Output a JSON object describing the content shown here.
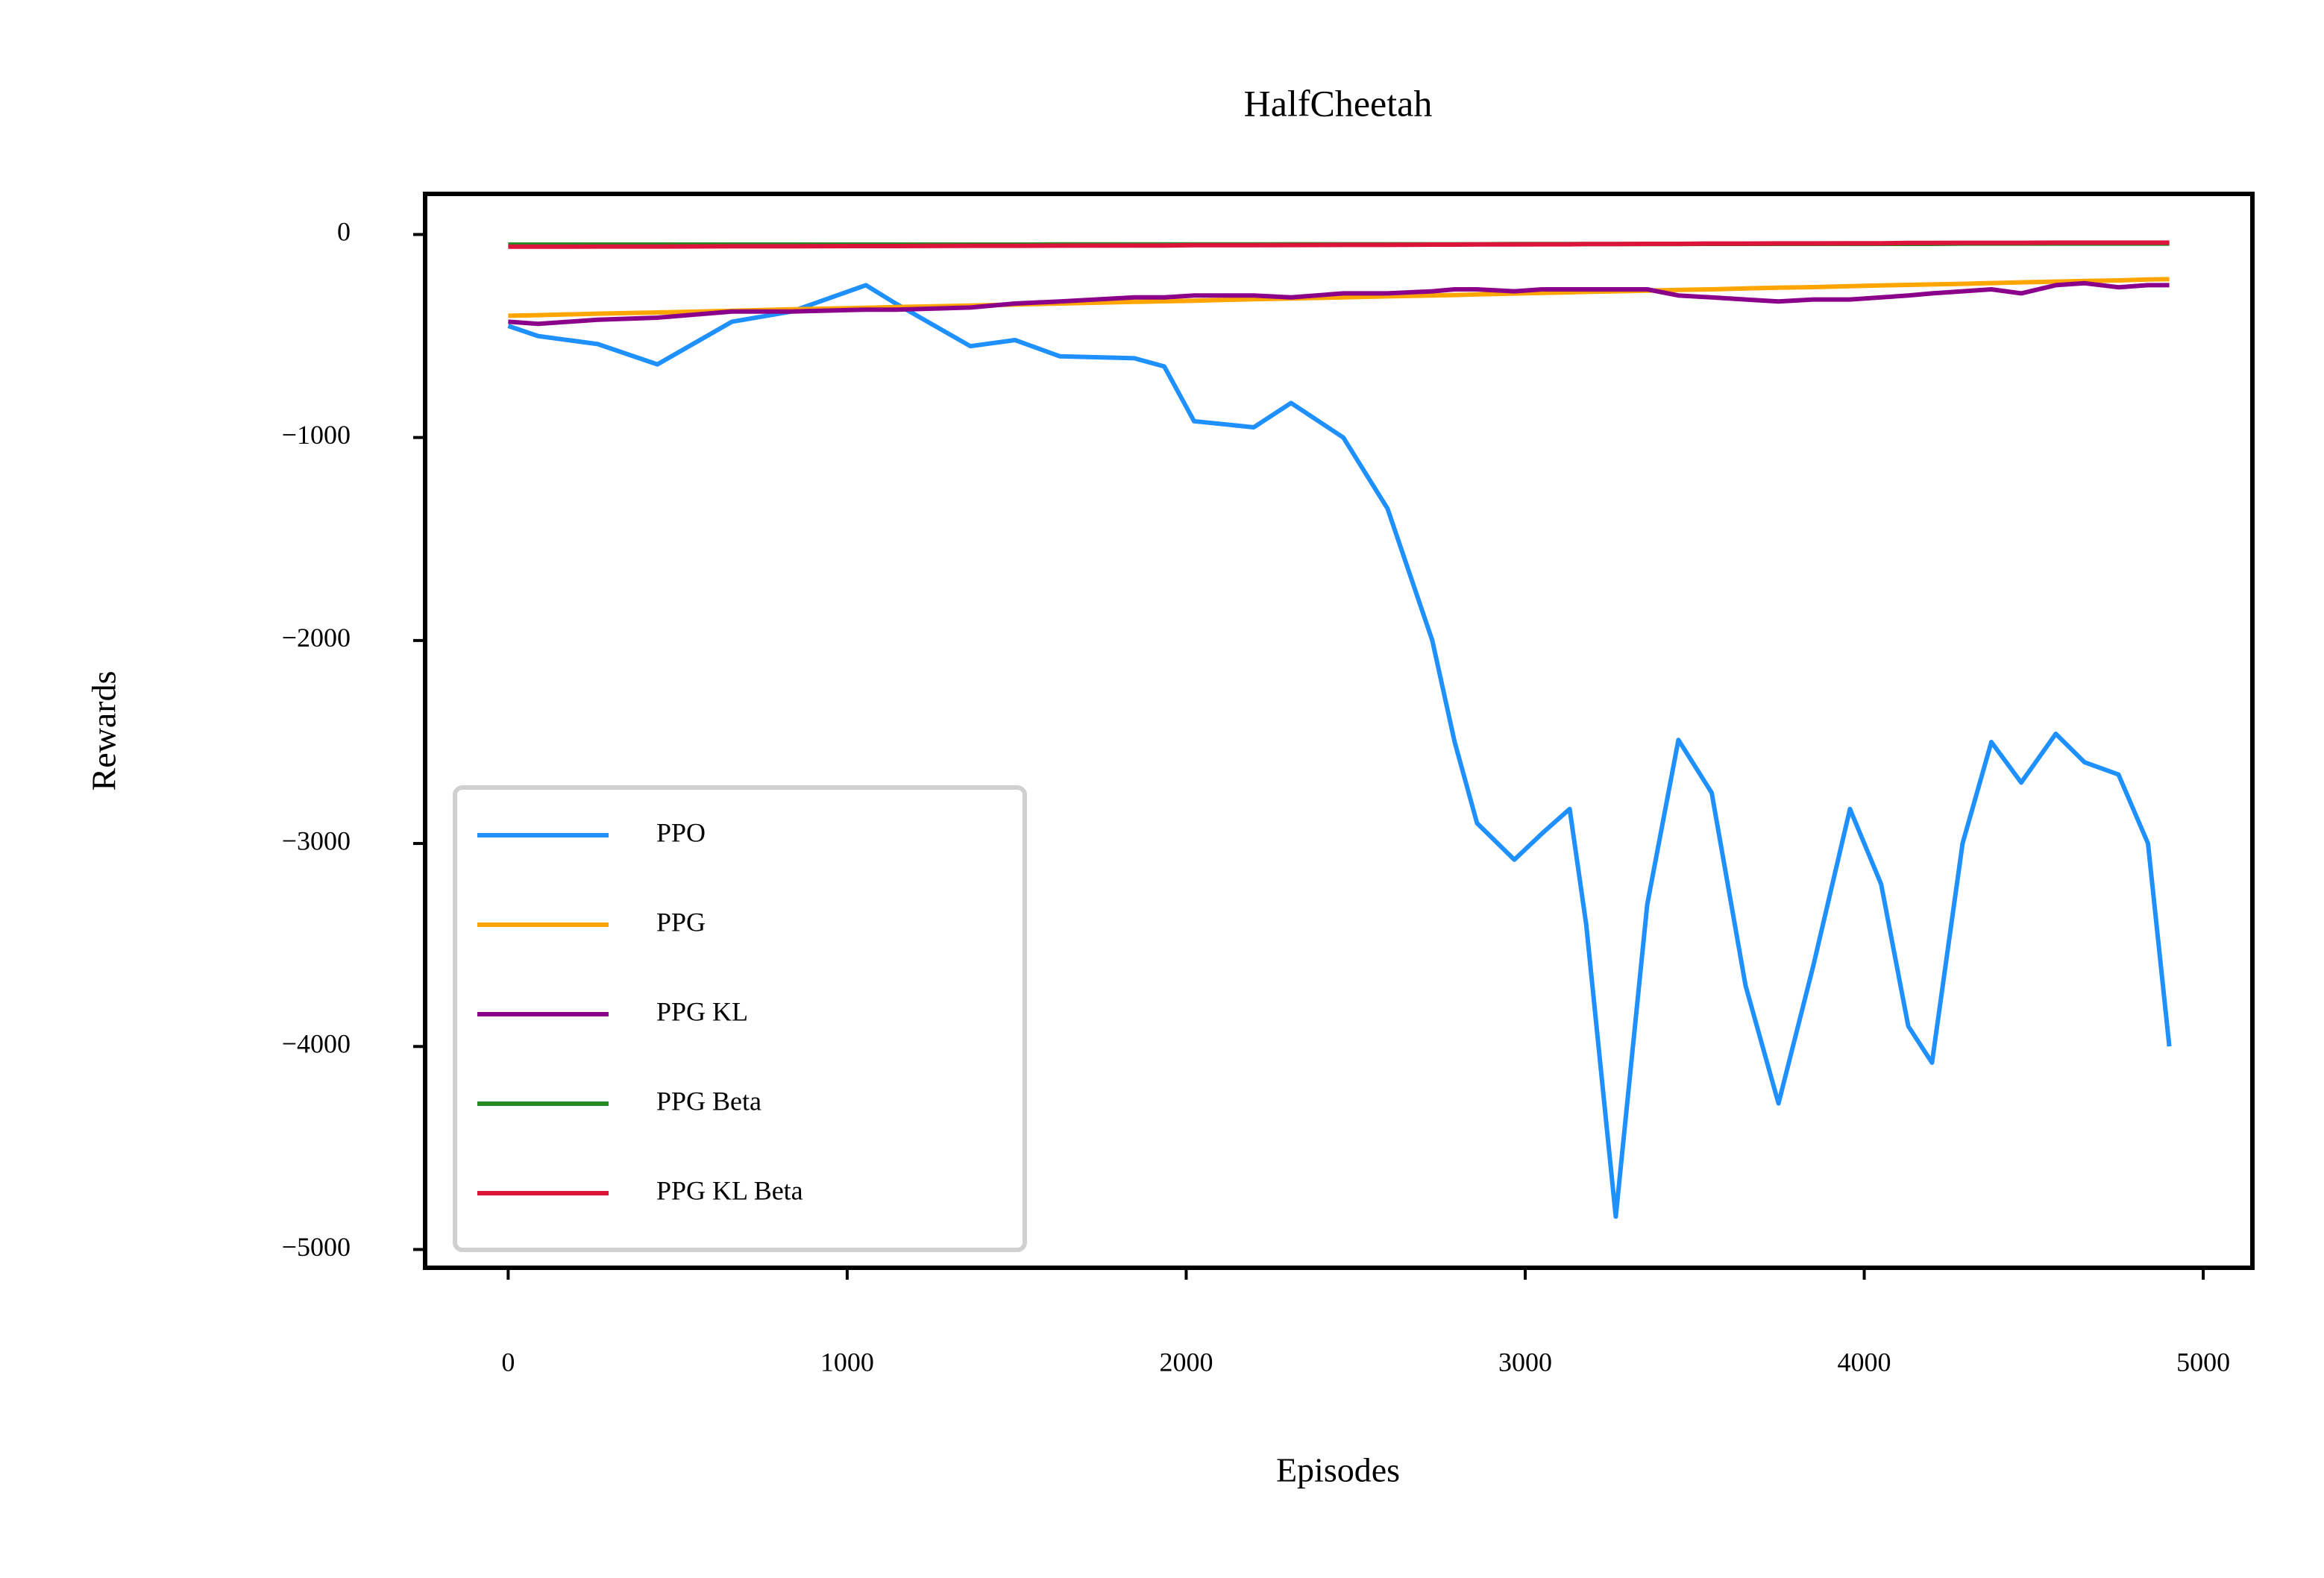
{
  "chart_data": {
    "type": "line",
    "title": "HalfCheetah",
    "x_label": "Episodes",
    "y_label": "Rewards",
    "x": [
      0,
      88,
      264,
      440,
      660,
      835,
      1055,
      1143,
      1363,
      1495,
      1627,
      1847,
      1935,
      2023,
      2199,
      2309,
      2463,
      2594,
      2726,
      2792,
      2858,
      2968,
      3050,
      3131,
      3180,
      3267,
      3360,
      3452,
      3550,
      3650,
      3747,
      3850,
      3958,
      4050,
      4130,
      4200,
      4290,
      4375,
      4463,
      4565,
      4650,
      4750,
      4837,
      4900
    ],
    "series": [
      {
        "name": "PPO",
        "color": "#1e90ff",
        "values": [
          -450,
          -500,
          -540,
          -640,
          -430,
          -380,
          -250,
          -340,
          -550,
          -520,
          -600,
          -610,
          -650,
          -920,
          -950,
          -830,
          -1000,
          -1350,
          -2000,
          -2500,
          -2900,
          -3080,
          -2950,
          -2830,
          -3400,
          -4838,
          -3300,
          -2490,
          -2750,
          -3700,
          -4280,
          -3600,
          -2830,
          -3200,
          -3900,
          -4080,
          -3000,
          -2500,
          -2700,
          -2460,
          -2600,
          -2660,
          -3000,
          -4000
        ]
      },
      {
        "name": "PPG",
        "color": "#ffa500",
        "values": [
          -400,
          -397,
          -390,
          -384,
          -376,
          -369,
          -361,
          -358,
          -350,
          -345,
          -340,
          -332,
          -329,
          -326,
          -319,
          -315,
          -310,
          -305,
          -300,
          -298,
          -295,
          -291,
          -288,
          -285,
          -283,
          -280,
          -277,
          -273,
          -270,
          -266,
          -262,
          -259,
          -255,
          -251,
          -248,
          -246,
          -243,
          -239,
          -236,
          -232,
          -229,
          -226,
          -222,
          -220
        ]
      },
      {
        "name": "PPG KL",
        "color": "#8b008b",
        "values": [
          -430,
          -440,
          -420,
          -410,
          -380,
          -380,
          -370,
          -370,
          -360,
          -340,
          -330,
          -310,
          -310,
          -300,
          -300,
          -310,
          -290,
          -290,
          -280,
          -270,
          -270,
          -280,
          -270,
          -270,
          -270,
          -270,
          -270,
          -300,
          -310,
          -320,
          -330,
          -320,
          -320,
          -310,
          -300,
          -290,
          -280,
          -270,
          -290,
          -250,
          -240,
          -260,
          -250,
          -250
        ]
      },
      {
        "name": "PPG Beta",
        "color": "#228b22",
        "values": [
          -50,
          -50,
          -50,
          -50,
          -50,
          -50,
          -50,
          -50,
          -50,
          -50,
          -49,
          -49,
          -49,
          -49,
          -49,
          -48,
          -48,
          -48,
          -48,
          -48,
          -48,
          -47,
          -47,
          -47,
          -47,
          -47,
          -47,
          -47,
          -46,
          -46,
          -46,
          -46,
          -46,
          -46,
          -46,
          -46,
          -45,
          -45,
          -45,
          -45,
          -45,
          -45,
          -45,
          -45
        ]
      },
      {
        "name": "PPG KL Beta",
        "color": "#dc143c",
        "values": [
          -60,
          -60,
          -59,
          -59,
          -58,
          -58,
          -57,
          -57,
          -56,
          -56,
          -55,
          -54,
          -54,
          -53,
          -53,
          -52,
          -51,
          -51,
          -50,
          -50,
          -49,
          -49,
          -48,
          -48,
          -47,
          -47,
          -46,
          -46,
          -45,
          -45,
          -44,
          -44,
          -43,
          -43,
          -42,
          -42,
          -41,
          -41,
          -41,
          -40,
          -40,
          -40,
          -40,
          -40
        ]
      }
    ],
    "xlim": [
      -245,
      5145
    ],
    "ylim": [
      -5090,
      200
    ],
    "xticks": [
      0,
      1000,
      2000,
      3000,
      4000,
      5000
    ],
    "yticks": [
      {
        "value": 0,
        "label": "0"
      },
      {
        "value": -1000,
        "label": "−1000"
      },
      {
        "value": -2000,
        "label": "−2000"
      },
      {
        "value": -3000,
        "label": "−3000"
      },
      {
        "value": -4000,
        "label": "−4000"
      },
      {
        "value": -5000,
        "label": "−5000"
      }
    ],
    "legend": "lower left",
    "grid": false
  }
}
